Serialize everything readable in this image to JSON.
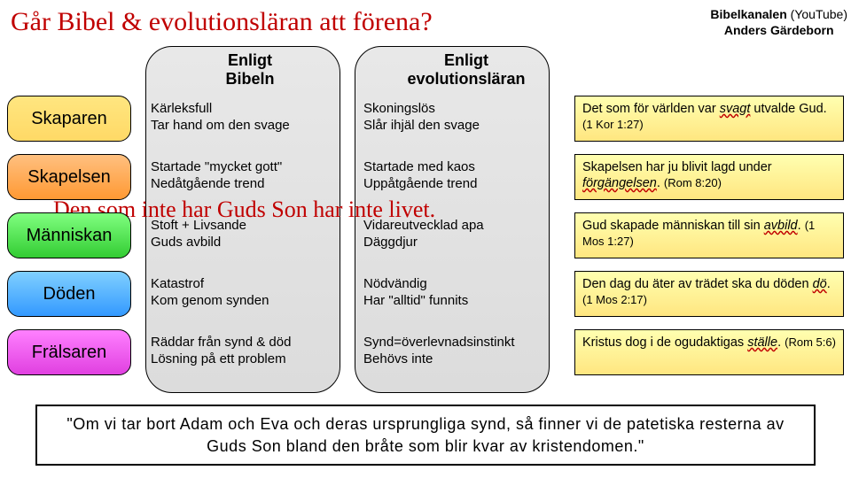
{
  "title": "Går Bibel & evolutionsläran att förena?",
  "channel": {
    "name": "Bibelkanalen",
    "platform": "(YouTube)",
    "author": "Anders Gärdeborn"
  },
  "columns": {
    "bible": "Enligt\nBibeln",
    "evolution": "Enligt\nevolutionsläran"
  },
  "ghost_line": "Den som inte har Guds Son har inte livet.",
  "rows": [
    {
      "label": "Skaparen",
      "bible": "Kärleksfull\nTar hand om den svage",
      "evo": "Skoningslös\nSlår ihjäl den svage",
      "quote_pre": "Det som för världen var ",
      "quote_em": "svagt",
      "quote_post": " utvalde Gud. ",
      "ref": "(1 Kor 1:27)"
    },
    {
      "label": "Skapelsen",
      "bible": "Startade \"mycket gott\"\nNedåtgående trend",
      "evo": "Startade med kaos\nUppåtgående trend",
      "quote_pre": "Skapelsen har ju blivit lagd under ",
      "quote_em": "förgängelsen",
      "quote_post": ". ",
      "ref": "(Rom 8:20)"
    },
    {
      "label": "Människan",
      "bible": "Stoft + Livsande\nGuds avbild",
      "evo": "Vidareutvecklad apa\nDäggdjur",
      "quote_pre": "Gud skapade människan till sin ",
      "quote_em": "avbild",
      "quote_post": ". ",
      "ref": "(1 Mos 1:27)"
    },
    {
      "label": "Döden",
      "bible": "Katastrof\nKom genom synden",
      "evo": "Nödvändig\nHar \"alltid\" funnits",
      "quote_pre": "Den dag du äter av trädet ska du döden ",
      "quote_em": "dö",
      "quote_post": ". ",
      "ref": "(1 Mos 2:17)"
    },
    {
      "label": "Frälsaren",
      "bible": "Räddar från synd & död\nLösning på ett problem",
      "evo": "Synd=överlevnadsinstinkt\nBehövs inte",
      "quote_pre": "Kristus dog i de ogudaktigas ",
      "quote_em": "ställe",
      "quote_post": ". ",
      "ref": "(Rom 5:6)"
    }
  ],
  "footer": "\"Om vi tar bort Adam och Eva och deras ursprungliga synd, så finner vi de patetiska resterna av Guds Son bland den bråte som blir kvar av kristendomen.\""
}
